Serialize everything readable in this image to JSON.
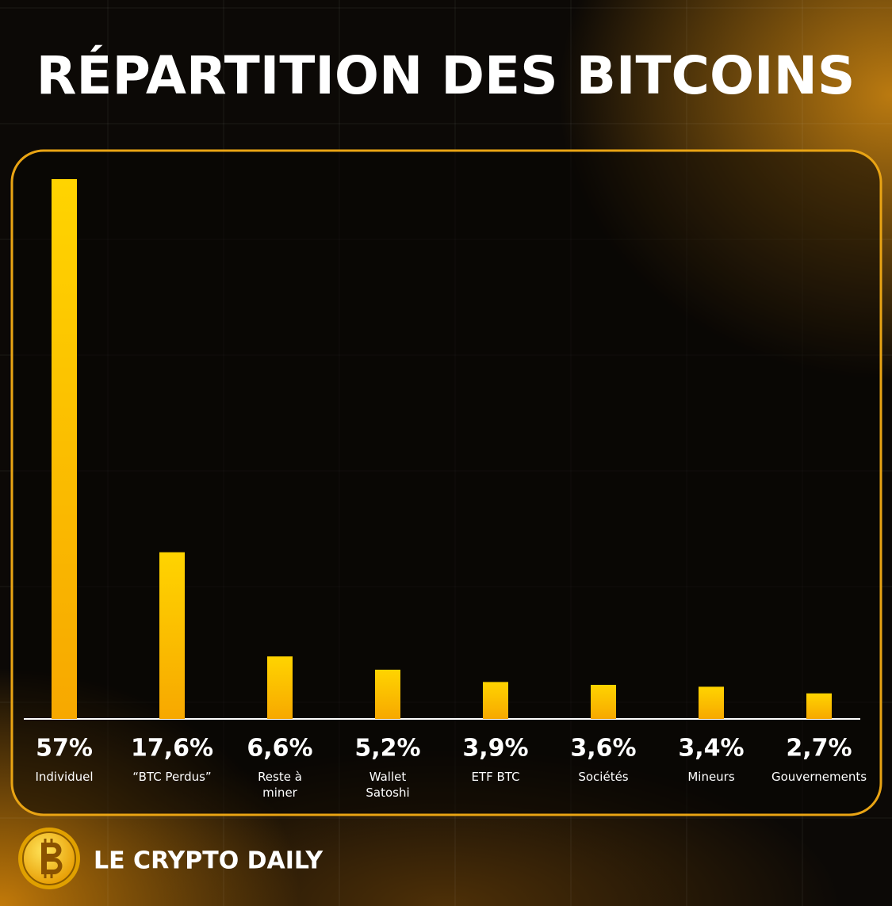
{
  "chart_data": {
    "type": "bar",
    "title": "RÉPARTITION DES BITCOINS",
    "categories": [
      "Individuel",
      "“BTC Perdus”",
      "Reste à\nminer",
      "Wallet\nSatoshi",
      "ETF BTC",
      "Sociétés",
      "Mineurs",
      "Gouvernements"
    ],
    "values": [
      57,
      17.6,
      6.6,
      5.2,
      3.9,
      3.6,
      3.4,
      2.7
    ],
    "value_labels": [
      "57%",
      "17,6%",
      "6,6%",
      "5,2%",
      "3,9%",
      "3,6%",
      "3,4%",
      "2,7%"
    ],
    "color": "#ffcc00"
  },
  "brand": "LE CRYPTO DAILY"
}
